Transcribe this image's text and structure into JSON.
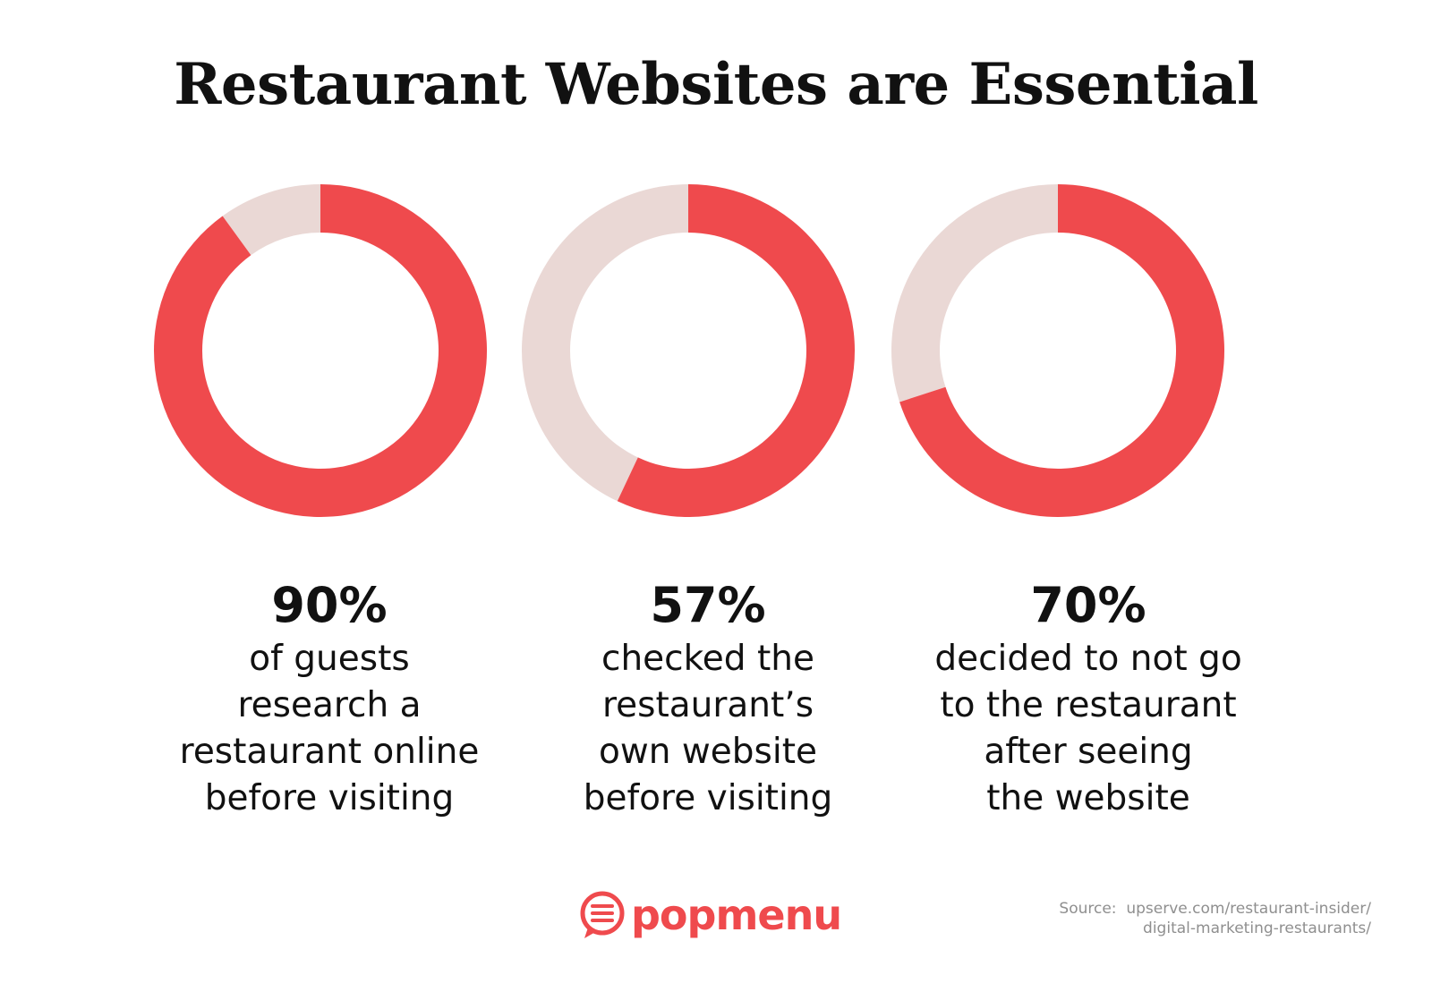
{
  "title": "Restaurant Websites are Essential",
  "colors": {
    "filled": "#ef4a4d",
    "remainder": "#ead8d5"
  },
  "chart_data": [
    {
      "type": "pie",
      "title": "",
      "categories": [
        "guests who research online",
        "remainder"
      ],
      "values": [
        90,
        10
      ],
      "value_label": "90%",
      "description": [
        "of guests",
        "research a",
        "restaurant online",
        "before visiting"
      ]
    },
    {
      "type": "pie",
      "title": "",
      "categories": [
        "checked own website",
        "remainder"
      ],
      "values": [
        57,
        43
      ],
      "value_label": "57%",
      "description": [
        "checked the",
        "restaurant’s",
        "own website",
        "before visiting"
      ]
    },
    {
      "type": "pie",
      "title": "",
      "categories": [
        "decided not to go",
        "remainder"
      ],
      "values": [
        70,
        30
      ],
      "value_label": "70%",
      "description": [
        "decided to not go",
        "to the restaurant",
        "after seeing",
        "the website"
      ]
    }
  ],
  "logo": {
    "text": "popmenu",
    "icon": "chat-bubble-icon"
  },
  "source": {
    "label": "Source:",
    "line1": "upserve.com/restaurant-insider/",
    "line2": "digital-marketing-restaurants/"
  }
}
